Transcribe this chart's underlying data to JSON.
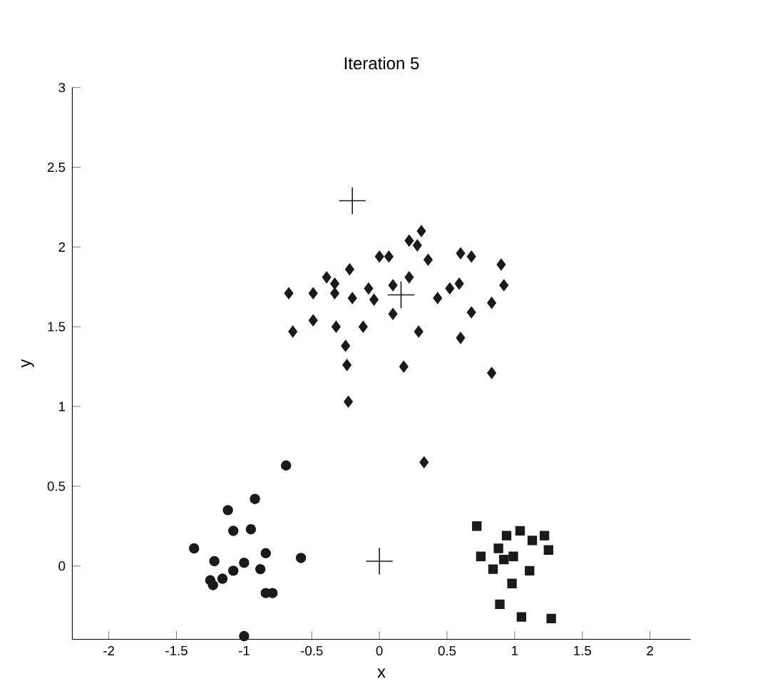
{
  "chart_data": {
    "type": "scatter",
    "title": "Iteration 5",
    "xlabel": "x",
    "ylabel": "y",
    "xlim": [
      -2.27,
      2.3
    ],
    "ylim": [
      -0.46,
      3
    ],
    "xticks": [
      -2,
      -1.5,
      -1,
      -0.5,
      0,
      0.5,
      1,
      1.5,
      2
    ],
    "yticks": [
      0,
      0.5,
      1,
      1.5,
      2,
      2.5,
      3
    ],
    "grid": false,
    "series": [
      {
        "color": "#1a1a1a",
        "marker": "diamond",
        "x": [
          -0.67,
          -0.64,
          -0.49,
          -0.49,
          -0.39,
          -0.33,
          -0.33,
          -0.32,
          -0.22,
          -0.2,
          -0.12,
          -0.25,
          -0.24,
          -0.23,
          -0.08,
          -0.04,
          0.0,
          0.07,
          0.1,
          0.1,
          0.22,
          0.22,
          0.28,
          0.36,
          0.29,
          0.18,
          0.43,
          0.52,
          0.59,
          0.6,
          0.68,
          0.68,
          0.6,
          0.83,
          0.9,
          0.92,
          0.83,
          0.31,
          0.33
        ],
        "values": [
          1.71,
          1.47,
          1.71,
          1.54,
          1.81,
          1.77,
          1.71,
          1.5,
          1.86,
          1.68,
          1.5,
          1.38,
          1.26,
          1.03,
          1.74,
          1.67,
          1.94,
          1.94,
          1.76,
          1.58,
          1.81,
          2.04,
          2.01,
          1.92,
          1.47,
          1.25,
          1.68,
          1.74,
          1.77,
          1.96,
          1.94,
          1.59,
          1.43,
          1.65,
          1.89,
          1.76,
          1.21,
          2.1,
          0.65
        ]
      },
      {
        "color": "#1a1a1a",
        "marker": "circle",
        "x": [
          -1.37,
          -1.12,
          -0.92,
          -1.08,
          -0.95,
          -1.22,
          -1.25,
          -1.16,
          -1.08,
          -1.0,
          -0.88,
          -0.84,
          -0.84,
          -0.79,
          -0.58,
          -0.69,
          -1.0,
          -1.23
        ],
        "values": [
          0.11,
          0.35,
          0.42,
          0.22,
          0.23,
          0.03,
          -0.09,
          -0.08,
          -0.03,
          0.02,
          -0.02,
          0.08,
          -0.17,
          -0.17,
          0.05,
          0.63,
          -0.44,
          -0.12
        ]
      },
      {
        "color": "#1a1a1a",
        "marker": "square",
        "x": [
          0.72,
          0.75,
          0.84,
          0.88,
          0.94,
          0.99,
          1.04,
          1.13,
          1.22,
          1.25,
          1.11,
          0.98,
          0.89,
          1.05,
          1.27,
          0.92
        ],
        "values": [
          0.25,
          0.06,
          -0.02,
          0.11,
          0.19,
          0.06,
          0.22,
          0.16,
          0.19,
          0.1,
          -0.03,
          -0.11,
          -0.24,
          -0.32,
          -0.33,
          0.04
        ]
      },
      {
        "color": "#1a1a1a",
        "marker": "cross",
        "x": [
          -0.2,
          0.16,
          0.0
        ],
        "values": [
          2.29,
          1.7,
          0.03
        ]
      }
    ]
  }
}
